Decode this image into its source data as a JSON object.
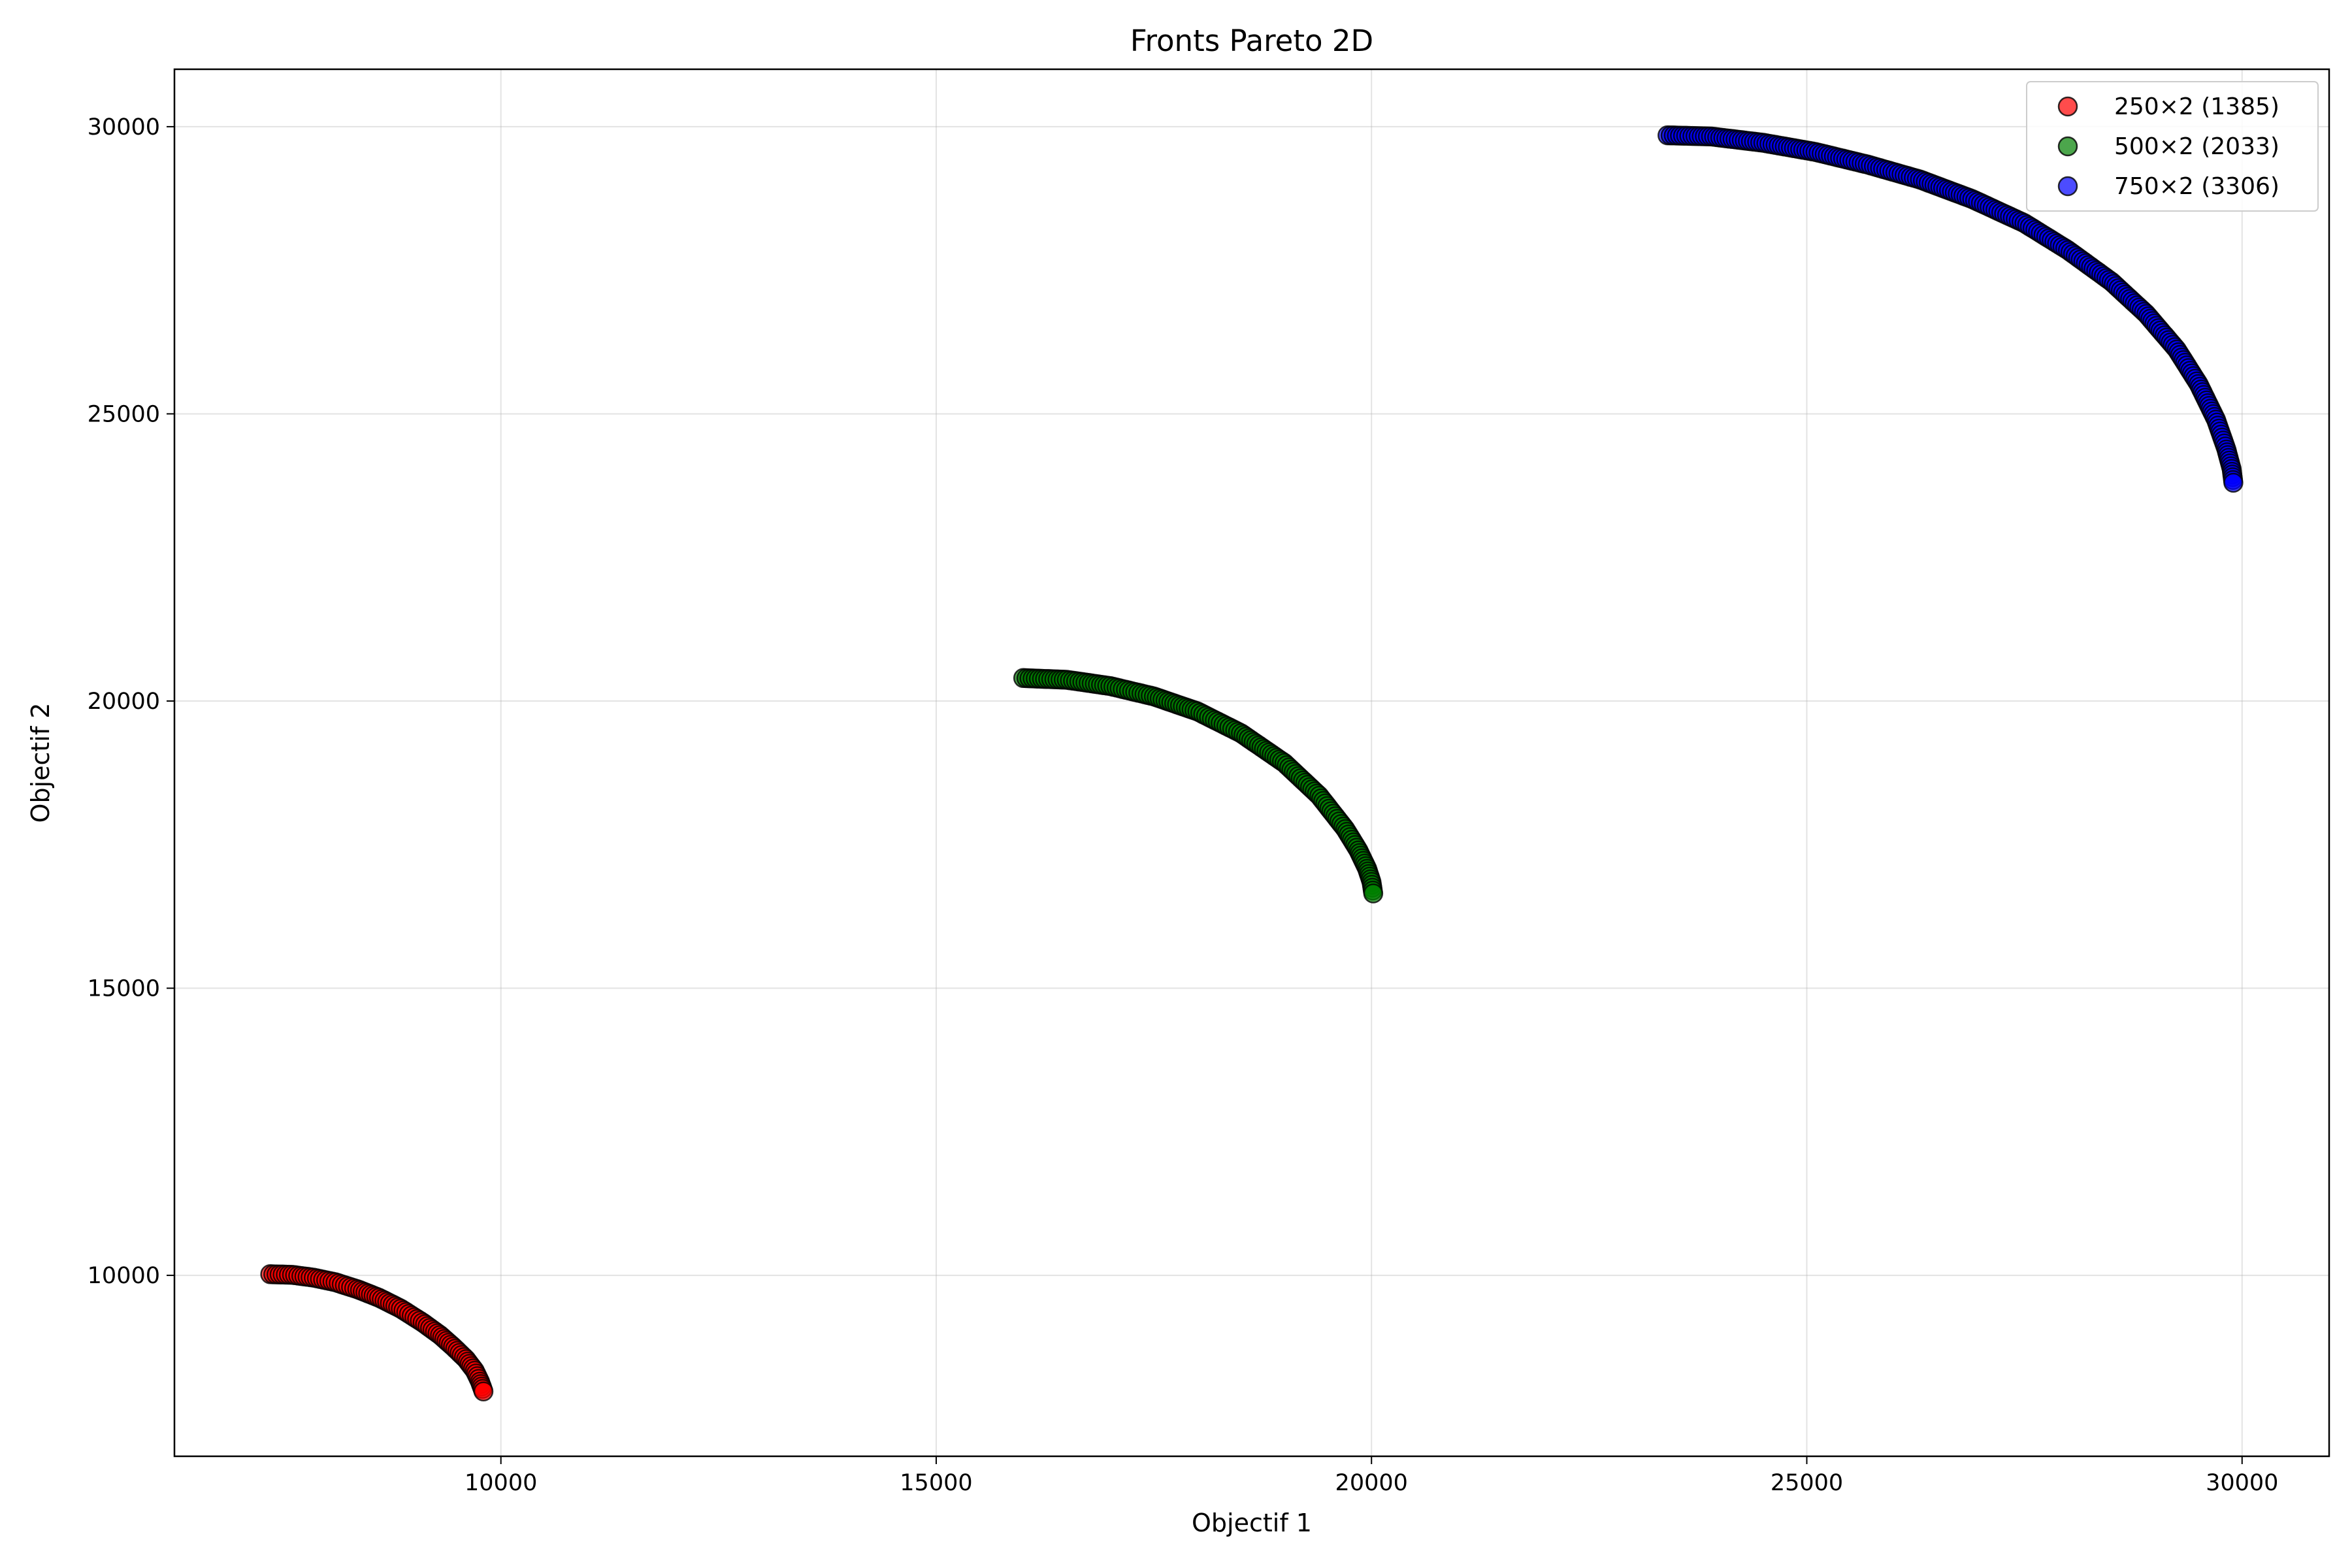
{
  "chart_data": {
    "type": "scatter",
    "title": "Fronts Pareto 2D",
    "xlabel": "Objectif 1",
    "ylabel": "Objectif 2",
    "xlim": [
      6250,
      31000
    ],
    "ylim": [
      6850,
      31000
    ],
    "xticks": [
      10000,
      15000,
      20000,
      25000,
      30000
    ],
    "yticks": [
      10000,
      15000,
      20000,
      25000,
      30000
    ],
    "grid": true,
    "legend_position": "top-right",
    "series": [
      {
        "name": "250×2 (1385)",
        "color": "#ff0000",
        "x": [
          7350,
          7600,
          7850,
          8100,
          8350,
          8600,
          8850,
          9100,
          9300,
          9450,
          9600,
          9700,
          9760,
          9800
        ],
        "y": [
          10020,
          10010,
          9960,
          9880,
          9760,
          9610,
          9420,
          9180,
          8960,
          8760,
          8540,
          8340,
          8150,
          7980
        ]
      },
      {
        "name": "500×2 (2033)",
        "color": "#008000",
        "x": [
          16000,
          16500,
          17000,
          17500,
          18000,
          18500,
          19000,
          19400,
          19700,
          19850,
          19950,
          20000,
          20020
        ],
        "y": [
          20400,
          20370,
          20260,
          20080,
          19820,
          19440,
          18920,
          18350,
          17770,
          17400,
          17080,
          16850,
          16650
        ]
      },
      {
        "name": "750×2 (3306)",
        "color": "#0000ff",
        "x": [
          23400,
          23900,
          24500,
          25100,
          25700,
          26300,
          26900,
          27500,
          28000,
          28500,
          28900,
          29250,
          29500,
          29700,
          29820,
          29880,
          29900
        ],
        "y": [
          29850,
          29830,
          29720,
          29560,
          29340,
          29080,
          28740,
          28320,
          27850,
          27300,
          26740,
          26120,
          25520,
          24900,
          24380,
          24040,
          23800
        ]
      }
    ]
  }
}
